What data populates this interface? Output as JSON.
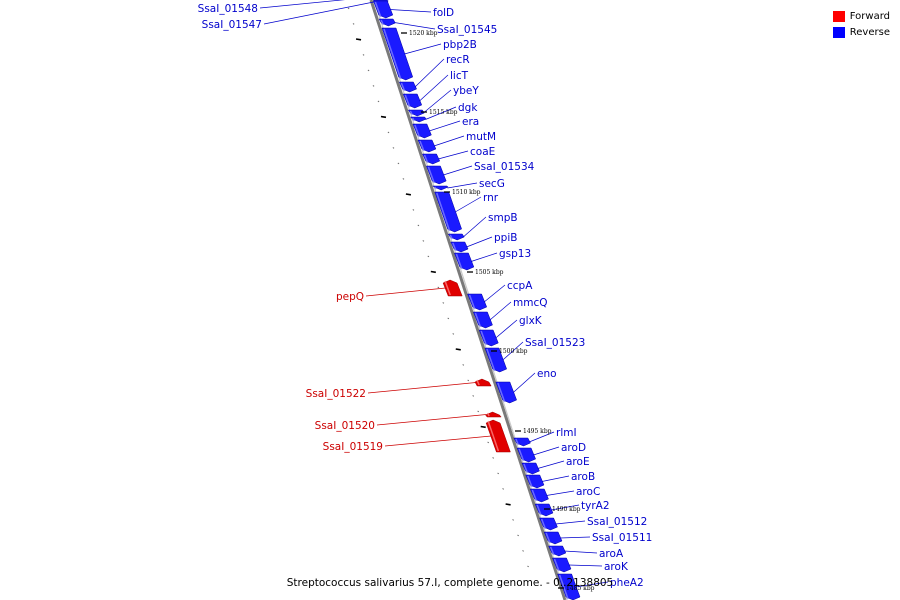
{
  "title": "Streptococcus salivarius 57.I, complete genome. - 0..2138805",
  "legend": [
    {
      "label": "Forward",
      "color": "#ff0000"
    },
    {
      "label": "Reverse",
      "color": "#0000ff"
    }
  ],
  "colors": {
    "forward": "#e00000",
    "reverse": "#1a1aff",
    "label_forward": "#cc0000",
    "label_reverse": "#0000cc",
    "axis": "#888888"
  },
  "scale_labels": [
    "1520 kbp",
    "1515 kbp",
    "1510 kbp",
    "1505 kbp",
    "1500 kbp",
    "1495 kbp",
    "1490 kbp",
    "1485 kbp"
  ],
  "genes": [
    {
      "name": "SsaI_01548",
      "strand": "reverse"
    },
    {
      "name": "SsaI_01547",
      "strand": "reverse"
    },
    {
      "name": "folD",
      "strand": "reverse"
    },
    {
      "name": "SsaI_01545",
      "strand": "reverse"
    },
    {
      "name": "pbp2B",
      "strand": "reverse"
    },
    {
      "name": "recR",
      "strand": "reverse"
    },
    {
      "name": "licT",
      "strand": "reverse"
    },
    {
      "name": "ybeY",
      "strand": "reverse"
    },
    {
      "name": "dgk",
      "strand": "reverse"
    },
    {
      "name": "era",
      "strand": "reverse"
    },
    {
      "name": "mutM",
      "strand": "reverse"
    },
    {
      "name": "coaE",
      "strand": "reverse"
    },
    {
      "name": "SsaI_01534",
      "strand": "reverse"
    },
    {
      "name": "secG",
      "strand": "reverse"
    },
    {
      "name": "rnr",
      "strand": "reverse"
    },
    {
      "name": "smpB",
      "strand": "reverse"
    },
    {
      "name": "ppiB",
      "strand": "reverse"
    },
    {
      "name": "gsp13",
      "strand": "reverse"
    },
    {
      "name": "pepQ",
      "strand": "forward"
    },
    {
      "name": "ccpA",
      "strand": "reverse"
    },
    {
      "name": "mmcQ",
      "strand": "reverse"
    },
    {
      "name": "glxK",
      "strand": "reverse"
    },
    {
      "name": "SsaI_01523",
      "strand": "reverse"
    },
    {
      "name": "SsaI_01522",
      "strand": "forward"
    },
    {
      "name": "eno",
      "strand": "reverse"
    },
    {
      "name": "SsaI_01520",
      "strand": "forward"
    },
    {
      "name": "SsaI_01519",
      "strand": "forward"
    },
    {
      "name": "rlmI",
      "strand": "reverse"
    },
    {
      "name": "aroD",
      "strand": "reverse"
    },
    {
      "name": "aroE",
      "strand": "reverse"
    },
    {
      "name": "aroB",
      "strand": "reverse"
    },
    {
      "name": "aroC",
      "strand": "reverse"
    },
    {
      "name": "tyrA2",
      "strand": "reverse"
    },
    {
      "name": "SsaI_01512",
      "strand": "reverse"
    },
    {
      "name": "SsaI_01511",
      "strand": "reverse"
    },
    {
      "name": "aroA",
      "strand": "reverse"
    },
    {
      "name": "aroK",
      "strand": "reverse"
    },
    {
      "name": "pheA2",
      "strand": "reverse"
    }
  ]
}
